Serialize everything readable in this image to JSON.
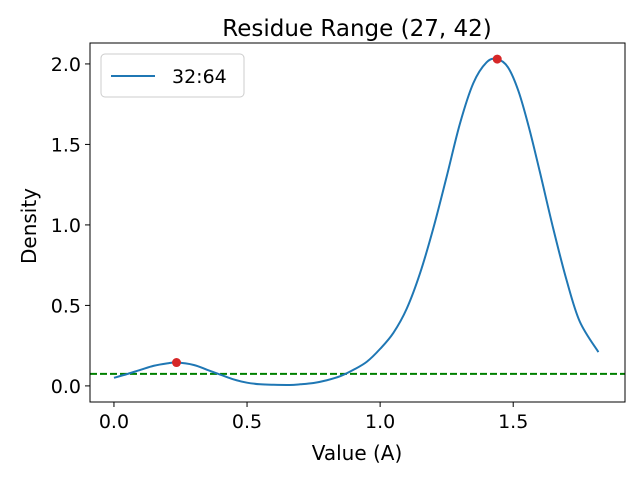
{
  "chart_data": {
    "type": "line",
    "title": "Residue Range (27, 42)",
    "xlabel": "Value (A)",
    "ylabel": "Density",
    "xlim": [
      -0.09,
      1.92
    ],
    "ylim": [
      -0.1,
      2.13
    ],
    "xticks": [
      0.0,
      0.5,
      1.0,
      1.5
    ],
    "xtick_labels": [
      "0.0",
      "0.5",
      "1.0",
      "1.5"
    ],
    "yticks": [
      0.0,
      0.5,
      1.0,
      1.5,
      2.0
    ],
    "ytick_labels": [
      "0.0",
      "0.5",
      "1.0",
      "1.5",
      "2.0"
    ],
    "grid": false,
    "legend_position": "top-left",
    "series": [
      {
        "name": "32:64",
        "color": "#1f77b4",
        "x": [
          0.0,
          0.05,
          0.1,
          0.15,
          0.2,
          0.235,
          0.3,
          0.35,
          0.4,
          0.45,
          0.5,
          0.55,
          0.6,
          0.66,
          0.7,
          0.75,
          0.8,
          0.85,
          0.9,
          0.95,
          1.0,
          1.05,
          1.1,
          1.15,
          1.2,
          1.25,
          1.3,
          1.35,
          1.4,
          1.44,
          1.48,
          1.52,
          1.56,
          1.6,
          1.65,
          1.7,
          1.75,
          1.82
        ],
        "y": [
          0.05,
          0.074,
          0.1,
          0.125,
          0.14,
          0.145,
          0.13,
          0.1,
          0.07,
          0.04,
          0.02,
          0.01,
          0.007,
          0.006,
          0.01,
          0.018,
          0.035,
          0.06,
          0.1,
          0.15,
          0.23,
          0.33,
          0.48,
          0.7,
          0.98,
          1.3,
          1.63,
          1.88,
          2.01,
          2.03,
          1.98,
          1.83,
          1.6,
          1.33,
          0.98,
          0.66,
          0.4,
          0.21
        ]
      }
    ],
    "peaks": {
      "color": "#d62728",
      "x": [
        0.235,
        1.44
      ],
      "y": [
        0.145,
        2.03
      ]
    },
    "threshold": {
      "y": 0.075,
      "color": "#008000",
      "style": "dashed"
    }
  }
}
